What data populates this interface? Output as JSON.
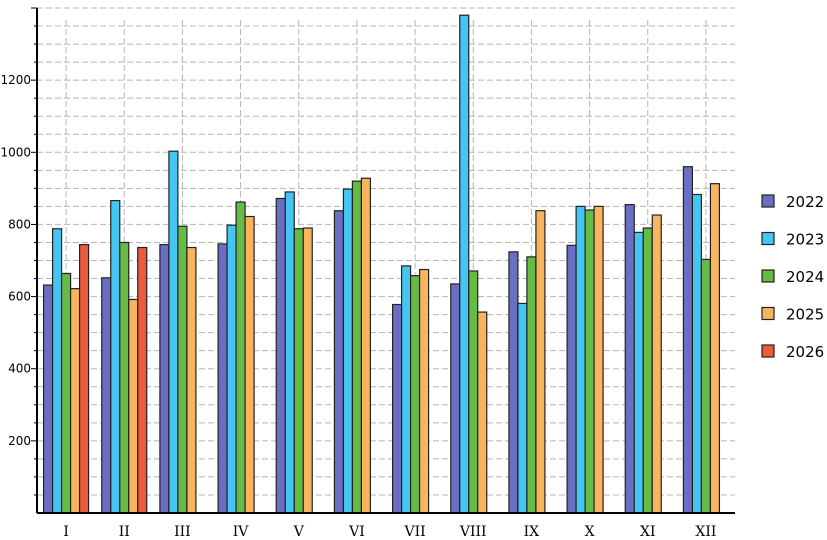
{
  "chart_data": {
    "type": "bar",
    "categories": [
      "I",
      "II",
      "III",
      "IV",
      "V",
      "VI",
      "VII",
      "VIII",
      "IX",
      "X",
      "XI",
      "XII"
    ],
    "series": [
      {
        "name": "2022",
        "color": "#6b6fc4",
        "values": [
          632,
          652,
          744,
          746,
          872,
          838,
          578,
          635,
          724,
          742,
          855,
          960
        ]
      },
      {
        "name": "2023",
        "color": "#45c6f2",
        "values": [
          788,
          866,
          1003,
          798,
          890,
          898,
          685,
          1380,
          581,
          850,
          778,
          883
        ]
      },
      {
        "name": "2024",
        "color": "#66bb44",
        "values": [
          664,
          750,
          795,
          862,
          788,
          920,
          658,
          671,
          710,
          840,
          790,
          703
        ]
      },
      {
        "name": "2025",
        "color": "#f9b45e",
        "values": [
          622,
          592,
          736,
          822,
          790,
          928,
          675,
          557,
          838,
          850,
          826,
          913
        ]
      },
      {
        "name": "2026",
        "color": "#ee5a3c",
        "values": [
          744,
          736,
          null,
          null,
          null,
          null,
          null,
          null,
          null,
          null,
          null,
          null
        ]
      }
    ],
    "yticks": [
      200,
      400,
      600,
      800,
      1000,
      1200
    ],
    "ylim": [
      0,
      1400
    ],
    "grid": true,
    "legend_position": "right"
  }
}
